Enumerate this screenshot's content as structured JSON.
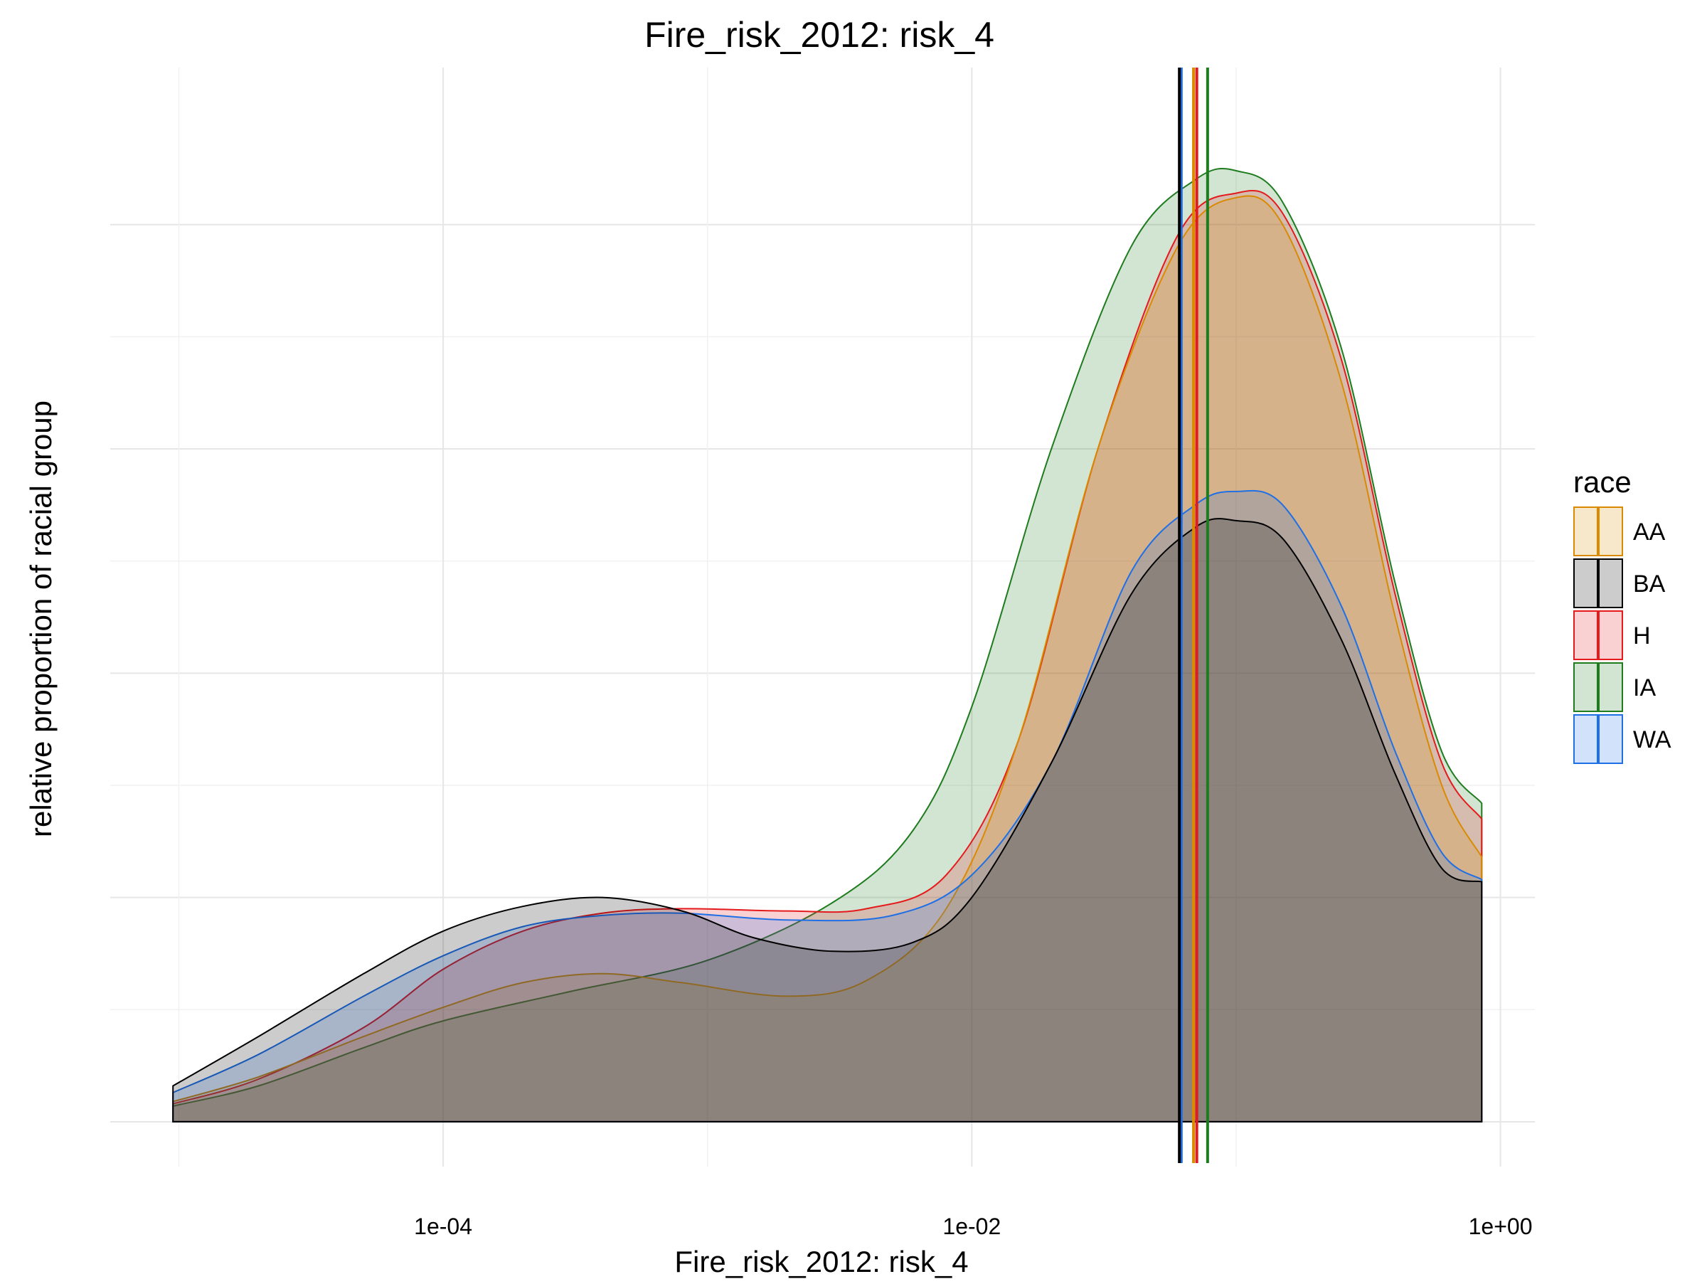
{
  "chart_data": {
    "type": "area",
    "title": "Fire_risk_2012: risk_4",
    "xlabel": "Fire_risk_2012: risk_4",
    "ylabel": "relative proportion of racial group",
    "x_scale": "log10",
    "xlim": [
      5.5e-06,
      1.35
    ],
    "ylim": [
      -0.2,
      4.7
    ],
    "x_ticks": [
      0.0001,
      0.01,
      1
    ],
    "x_tick_labels": [
      "1e-04",
      "1e-02",
      "1e+00"
    ],
    "y_gridlines": [
      0,
      0.5,
      1,
      1.5,
      2,
      2.5,
      3,
      3.5,
      4
    ],
    "grid": true,
    "legend_title": "race",
    "legend_position": "right",
    "series": [
      {
        "name": "IA",
        "color": "#1e7b1e",
        "mean": 0.078,
        "x": [
          9.5e-06,
          2e-05,
          5e-05,
          0.0001,
          0.0003,
          0.001,
          0.003,
          0.006,
          0.01,
          0.02,
          0.04,
          0.07,
          0.1,
          0.15,
          0.25,
          0.4,
          0.6,
          0.85
        ],
        "y": [
          0.07,
          0.16,
          0.33,
          0.45,
          0.58,
          0.72,
          0.98,
          1.3,
          1.85,
          3.0,
          3.9,
          4.2,
          4.24,
          4.1,
          3.45,
          2.4,
          1.65,
          1.42
        ]
      },
      {
        "name": "H",
        "color": "#e41a1c",
        "mean": 0.071,
        "x": [
          9.5e-06,
          2e-05,
          5e-05,
          0.0001,
          0.0002,
          0.0004,
          0.0008,
          0.002,
          0.004,
          0.008,
          0.015,
          0.03,
          0.06,
          0.1,
          0.15,
          0.25,
          0.4,
          0.6,
          0.85
        ],
        "y": [
          0.08,
          0.19,
          0.42,
          0.68,
          0.85,
          0.93,
          0.95,
          0.94,
          0.95,
          1.1,
          1.7,
          3.0,
          3.95,
          4.14,
          4.05,
          3.4,
          2.35,
          1.6,
          1.35
        ]
      },
      {
        "name": "AA",
        "color": "#d98a00",
        "mean": 0.069,
        "x": [
          9.5e-06,
          2e-05,
          5e-05,
          0.0001,
          0.0002,
          0.0004,
          0.0008,
          0.002,
          0.004,
          0.008,
          0.015,
          0.03,
          0.06,
          0.1,
          0.15,
          0.25,
          0.4,
          0.6,
          0.85
        ],
        "y": [
          0.09,
          0.2,
          0.38,
          0.51,
          0.62,
          0.66,
          0.62,
          0.56,
          0.63,
          0.95,
          1.7,
          3.0,
          3.9,
          4.12,
          4.0,
          3.3,
          2.25,
          1.5,
          1.18
        ]
      },
      {
        "name": "WA",
        "color": "#1f6fe5",
        "mean": 0.062,
        "x": [
          9.5e-06,
          2e-05,
          5e-05,
          0.0001,
          0.0002,
          0.0004,
          0.0008,
          0.002,
          0.005,
          0.01,
          0.02,
          0.04,
          0.07,
          0.1,
          0.15,
          0.25,
          0.4,
          0.6,
          0.85
        ],
        "y": [
          0.13,
          0.3,
          0.56,
          0.74,
          0.87,
          0.92,
          0.93,
          0.9,
          0.92,
          1.1,
          1.6,
          2.45,
          2.75,
          2.81,
          2.75,
          2.3,
          1.65,
          1.2,
          1.08
        ]
      },
      {
        "name": "BA",
        "color": "#000000",
        "mean": 0.061,
        "x": [
          9.5e-06,
          2e-05,
          5e-05,
          0.0001,
          0.0002,
          0.0004,
          0.0008,
          0.0015,
          0.003,
          0.006,
          0.01,
          0.02,
          0.04,
          0.07,
          0.1,
          0.15,
          0.25,
          0.4,
          0.6,
          0.85
        ],
        "y": [
          0.16,
          0.38,
          0.66,
          0.85,
          0.96,
          1.0,
          0.94,
          0.82,
          0.76,
          0.8,
          1.0,
          1.6,
          2.35,
          2.65,
          2.68,
          2.6,
          2.15,
          1.55,
          1.13,
          1.07
        ]
      }
    ]
  }
}
